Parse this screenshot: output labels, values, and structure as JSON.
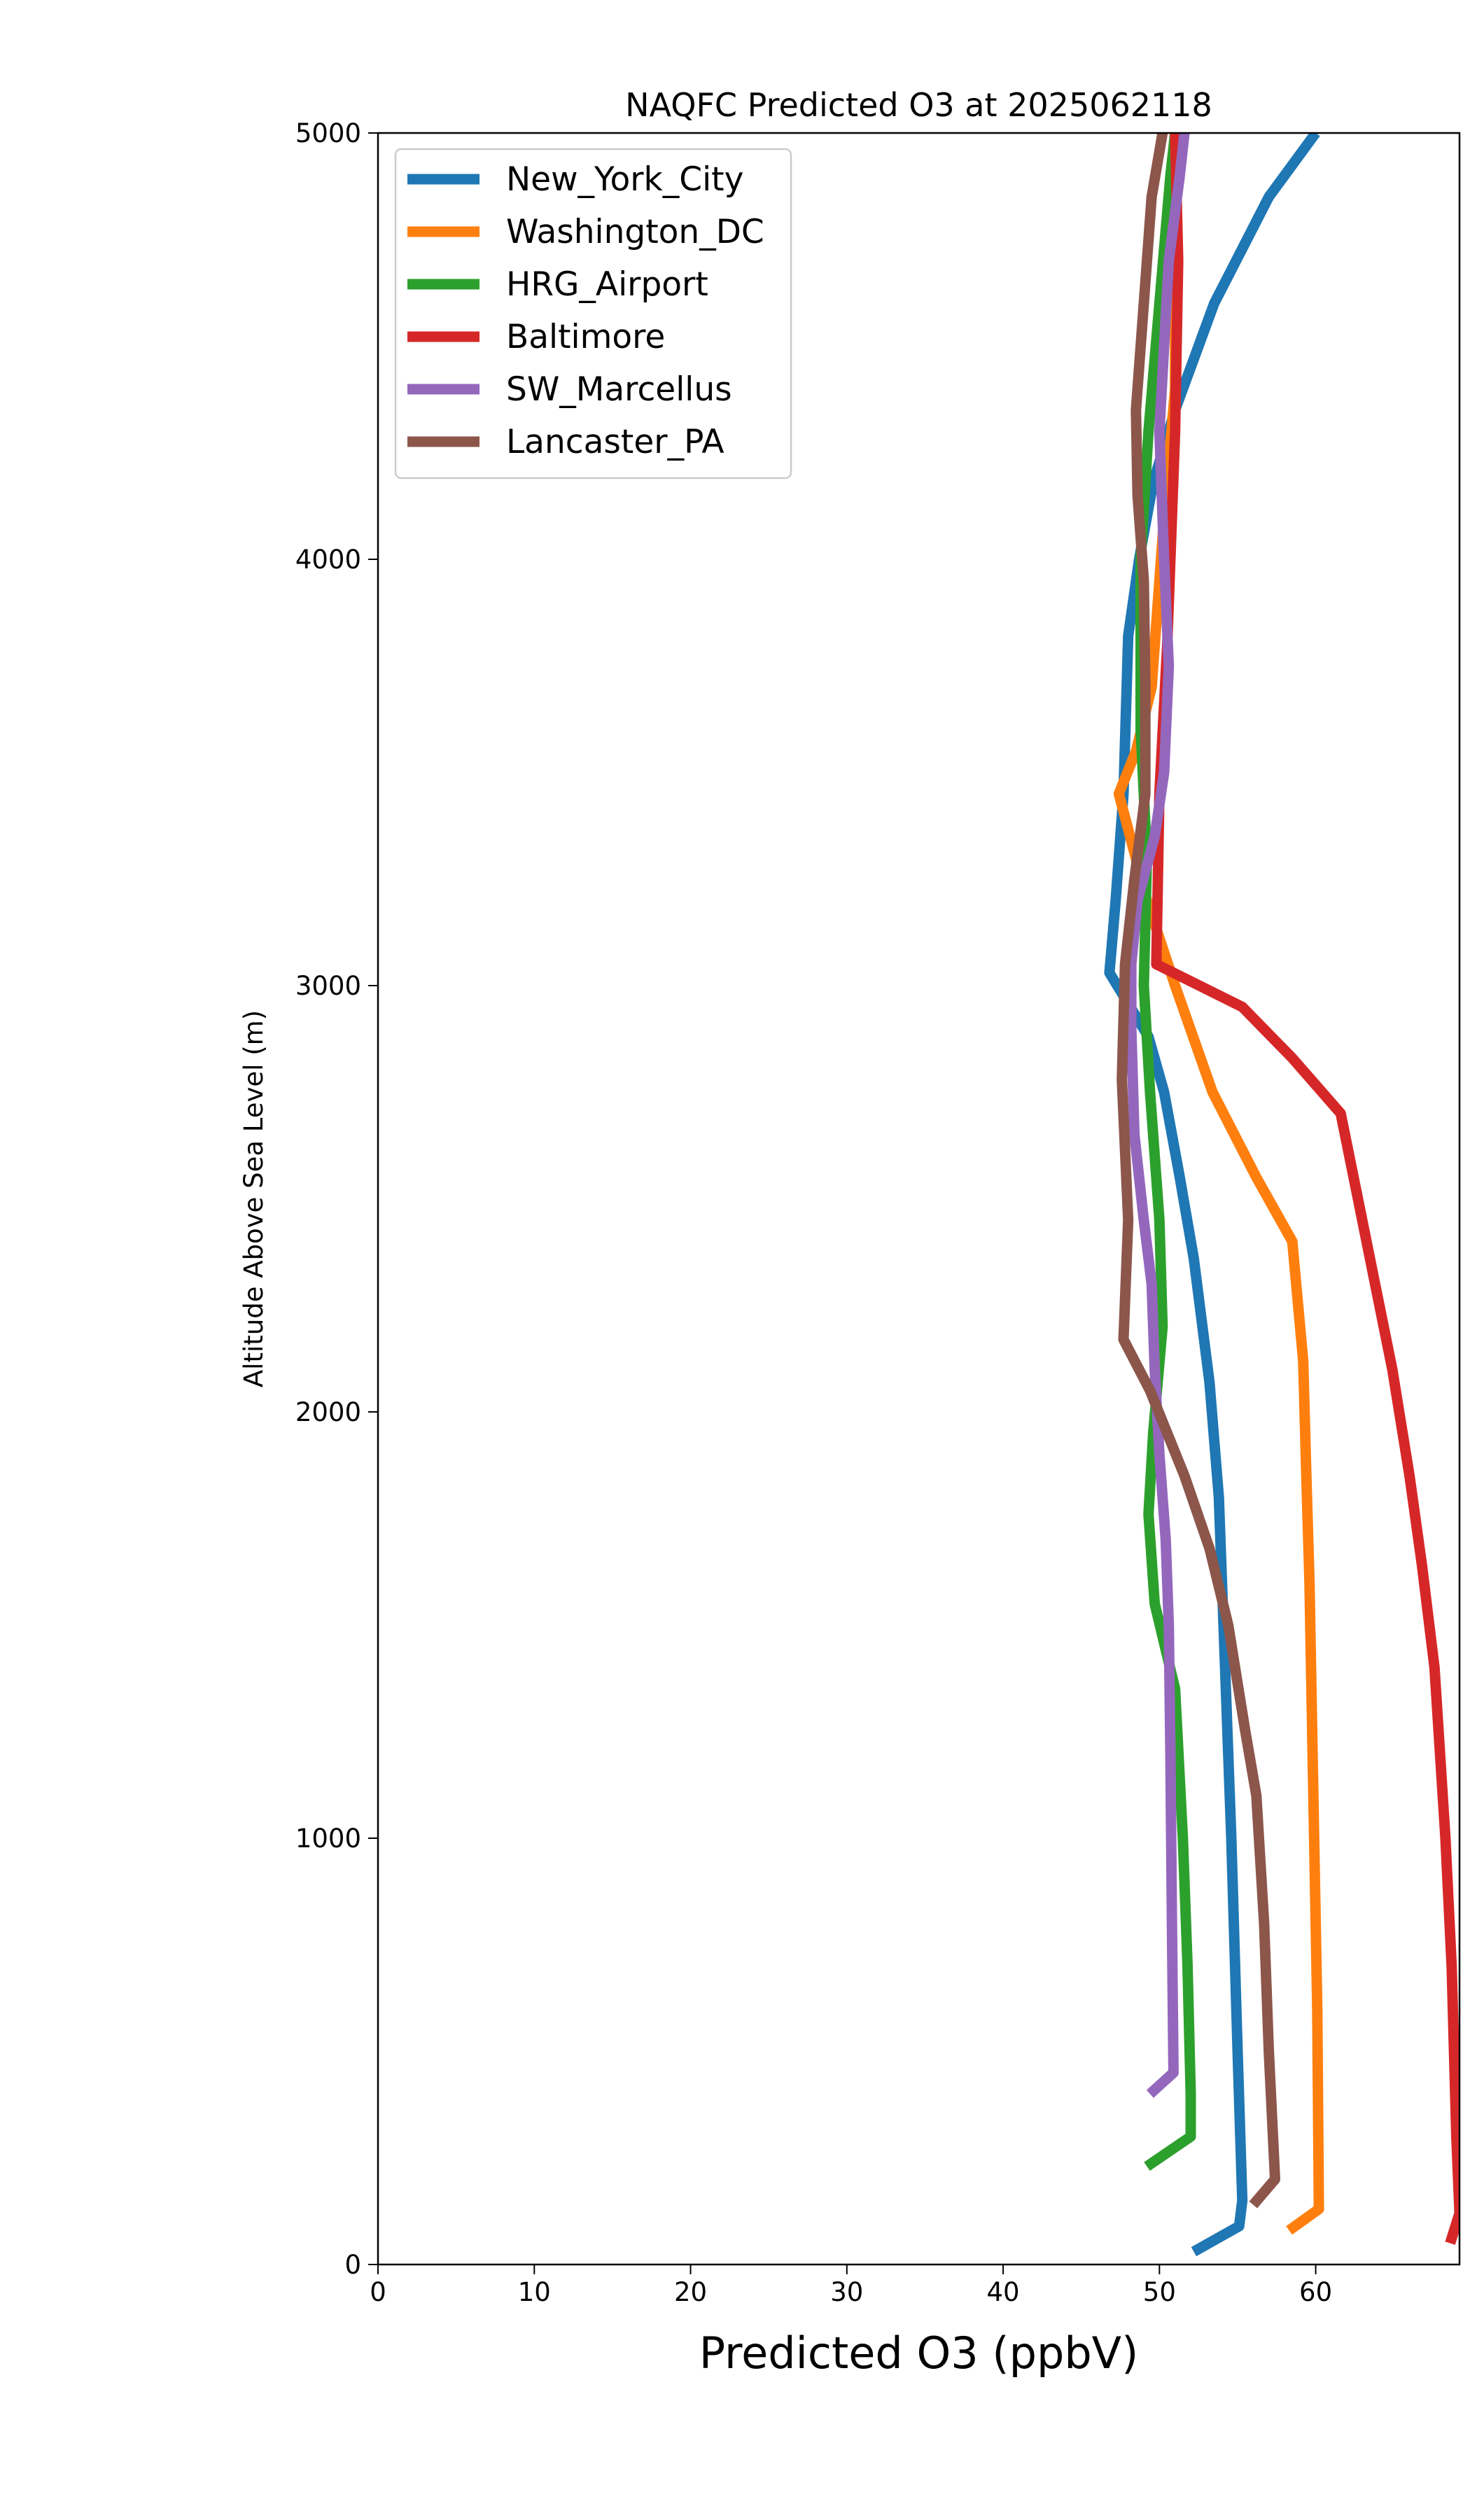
{
  "chart_data": {
    "type": "line",
    "title": "NAQFC Predicted O3 at 2025062118",
    "xlabel": "Predicted O3 (ppbV)",
    "ylabel": "Altitude Above Sea Level (m)",
    "xlim": [
      0,
      69.2
    ],
    "ylim": [
      0,
      5000
    ],
    "xticks": [
      0,
      10,
      20,
      30,
      40,
      50,
      60
    ],
    "yticks": [
      0,
      1000,
      2000,
      3000,
      4000,
      5000
    ],
    "grid": false,
    "legend_position": "upper-left",
    "series": [
      {
        "name": "New_York_City",
        "color": "#1f77b4",
        "points": [
          [
            52.2,
            30
          ],
          [
            55.1,
            90
          ],
          [
            55.3,
            150
          ],
          [
            55.0,
            500
          ],
          [
            54.6,
            1000
          ],
          [
            54.1,
            1500
          ],
          [
            53.8,
            1800
          ],
          [
            53.2,
            2070
          ],
          [
            52.2,
            2360
          ],
          [
            51.3,
            2550
          ],
          [
            50.3,
            2750
          ],
          [
            49.3,
            2880
          ],
          [
            46.8,
            3030
          ],
          [
            47.2,
            3200
          ],
          [
            47.7,
            3450
          ],
          [
            48.0,
            3820
          ],
          [
            48.7,
            4000
          ],
          [
            49.6,
            4180
          ],
          [
            51.0,
            4350
          ],
          [
            53.5,
            4600
          ],
          [
            57.0,
            4850
          ],
          [
            60.0,
            5000
          ]
        ]
      },
      {
        "name": "Washington_DC",
        "color": "#ff7f0e",
        "points": [
          [
            58.3,
            80
          ],
          [
            60.2,
            130
          ],
          [
            60.1,
            600
          ],
          [
            59.8,
            1200
          ],
          [
            59.6,
            1600
          ],
          [
            59.4,
            1850
          ],
          [
            59.2,
            2120
          ],
          [
            58.5,
            2400
          ],
          [
            56.2,
            2550
          ],
          [
            53.4,
            2750
          ],
          [
            51.0,
            3000
          ],
          [
            49.2,
            3200
          ],
          [
            47.4,
            3450
          ],
          [
            48.5,
            3550
          ],
          [
            49.5,
            3700
          ],
          [
            50.3,
            4100
          ],
          [
            51.0,
            4400
          ],
          [
            51.0,
            4750
          ],
          [
            51.0,
            5000
          ]
        ]
      },
      {
        "name": "HRG_Airport",
        "color": "#2ca02c",
        "points": [
          [
            49.2,
            230
          ],
          [
            52.0,
            300
          ],
          [
            52.0,
            400
          ],
          [
            51.8,
            700
          ],
          [
            51.5,
            1000
          ],
          [
            51.0,
            1350
          ],
          [
            49.7,
            1550
          ],
          [
            49.3,
            1760
          ],
          [
            49.6,
            1950
          ],
          [
            50.2,
            2200
          ],
          [
            50.0,
            2450
          ],
          [
            49.4,
            2750
          ],
          [
            49.0,
            3000
          ],
          [
            49.2,
            3300
          ],
          [
            48.8,
            3600
          ],
          [
            48.8,
            4000
          ],
          [
            49.3,
            4300
          ],
          [
            50.0,
            4600
          ],
          [
            50.7,
            4900
          ],
          [
            51.0,
            5000
          ]
        ]
      },
      {
        "name": "Baltimore",
        "color": "#d62728",
        "points": [
          [
            68.6,
            50
          ],
          [
            69.2,
            120
          ],
          [
            69.0,
            300
          ],
          [
            68.7,
            700
          ],
          [
            68.3,
            1000
          ],
          [
            67.6,
            1400
          ],
          [
            66.8,
            1640
          ],
          [
            66.0,
            1850
          ],
          [
            64.9,
            2100
          ],
          [
            63.8,
            2300
          ],
          [
            62.7,
            2500
          ],
          [
            61.6,
            2700
          ],
          [
            58.5,
            2830
          ],
          [
            55.3,
            2950
          ],
          [
            49.8,
            3050
          ],
          [
            50.0,
            3450
          ],
          [
            50.5,
            3800
          ],
          [
            51.0,
            4300
          ],
          [
            51.2,
            4700
          ],
          [
            51.0,
            5000
          ]
        ]
      },
      {
        "name": "SW_Marcellus",
        "color": "#9467bd",
        "points": [
          [
            49.4,
            400
          ],
          [
            50.9,
            450
          ],
          [
            50.8,
            800
          ],
          [
            50.7,
            1200
          ],
          [
            50.6,
            1500
          ],
          [
            50.4,
            1700
          ],
          [
            50.0,
            1900
          ],
          [
            49.7,
            2100
          ],
          [
            49.5,
            2300
          ],
          [
            49.0,
            2450
          ],
          [
            48.4,
            2650
          ],
          [
            48.2,
            2900
          ],
          [
            48.2,
            3050
          ],
          [
            48.6,
            3200
          ],
          [
            49.7,
            3350
          ],
          [
            50.3,
            3500
          ],
          [
            50.6,
            3750
          ],
          [
            50.3,
            4000
          ],
          [
            50.0,
            4300
          ],
          [
            50.6,
            4700
          ],
          [
            51.3,
            4900
          ],
          [
            51.6,
            5000
          ]
        ]
      },
      {
        "name": "Lancaster_PA",
        "color": "#8c564b",
        "points": [
          [
            56.0,
            140
          ],
          [
            57.4,
            200
          ],
          [
            57.0,
            500
          ],
          [
            56.7,
            800
          ],
          [
            56.2,
            1100
          ],
          [
            55.5,
            1250
          ],
          [
            54.4,
            1500
          ],
          [
            53.2,
            1680
          ],
          [
            51.6,
            1850
          ],
          [
            50.5,
            1950
          ],
          [
            49.4,
            2050
          ],
          [
            47.7,
            2170
          ],
          [
            48.0,
            2450
          ],
          [
            47.6,
            2780
          ],
          [
            47.8,
            3050
          ],
          [
            48.4,
            3250
          ],
          [
            49.1,
            3450
          ],
          [
            49.1,
            3700
          ],
          [
            49.0,
            3950
          ],
          [
            48.6,
            4150
          ],
          [
            48.5,
            4350
          ],
          [
            49.0,
            4600
          ],
          [
            49.5,
            4850
          ],
          [
            50.2,
            5000
          ]
        ]
      }
    ]
  }
}
